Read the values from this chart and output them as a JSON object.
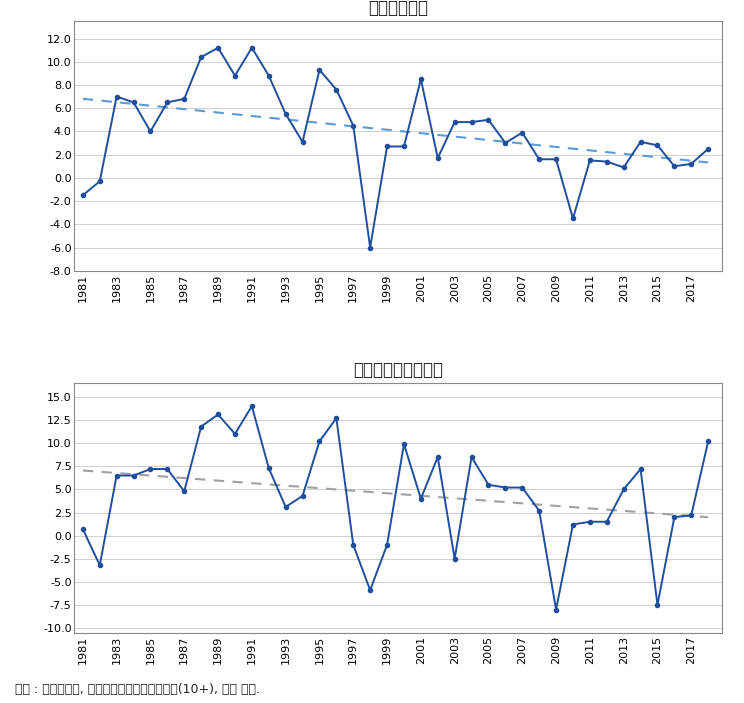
{
  "title1": "실질총액임금",
  "title2": "실질시간당총액임금",
  "caption": "자료 : 고용노동부, 「임금구조기본통계조사」(10+), 저자 계산.",
  "years": [
    1981,
    1982,
    1983,
    1984,
    1985,
    1986,
    1987,
    1988,
    1989,
    1990,
    1991,
    1992,
    1993,
    1994,
    1995,
    1996,
    1997,
    1998,
    1999,
    2000,
    2001,
    2002,
    2003,
    2004,
    2005,
    2006,
    2007,
    2008,
    2009,
    2010,
    2011,
    2012,
    2013,
    2014,
    2015,
    2016,
    2017,
    2018
  ],
  "data1": [
    -1.5,
    -0.3,
    7.0,
    6.5,
    4.0,
    6.5,
    6.8,
    10.4,
    11.2,
    8.8,
    11.2,
    8.8,
    5.5,
    3.1,
    9.3,
    7.6,
    4.5,
    -6.0,
    2.7,
    2.7,
    8.5,
    1.7,
    4.8,
    4.8,
    5.0,
    3.0,
    3.9,
    1.6,
    1.6,
    -3.5,
    1.5,
    1.4,
    0.9,
    3.1,
    2.8,
    1.0,
    1.2,
    2.5
  ],
  "data2": [
    0.7,
    -3.2,
    6.5,
    6.5,
    7.2,
    7.2,
    4.8,
    11.8,
    13.1,
    11.0,
    14.0,
    7.3,
    3.1,
    4.3,
    10.2,
    12.7,
    -1.0,
    -5.9,
    -1.0,
    9.9,
    4.0,
    8.5,
    -2.5,
    8.5,
    5.5,
    5.2,
    5.2,
    2.7,
    -8.0,
    1.2,
    1.5,
    1.5,
    5.0,
    7.2,
    -7.5,
    2.0,
    2.2,
    10.2
  ],
  "line_color": "#1f4e9c",
  "trend_color1": "#5b9bd5",
  "trend_color2": "#a0a0a0",
  "bg_color": "#ffffff",
  "grid_color": "#c8c8c8",
  "border_color": "#888888",
  "ylim1": [
    -8.0,
    13.5
  ],
  "yticks1": [
    -8.0,
    -6.0,
    -4.0,
    -2.0,
    0.0,
    2.0,
    4.0,
    6.0,
    8.0,
    10.0,
    12.0
  ],
  "ylim2": [
    -10.5,
    16.5
  ],
  "yticks2": [
    -10.0,
    -7.5,
    -5.0,
    -2.5,
    0.0,
    2.5,
    5.0,
    7.5,
    10.0,
    12.5,
    15.0
  ],
  "xtick_years": [
    1981,
    1983,
    1985,
    1987,
    1989,
    1991,
    1993,
    1995,
    1997,
    1999,
    2001,
    2003,
    2005,
    2007,
    2009,
    2011,
    2013,
    2015,
    2017
  ],
  "title_fontsize": 12,
  "tick_fontsize": 8,
  "caption_fontsize": 9,
  "fig_width": 7.44,
  "fig_height": 7.03
}
